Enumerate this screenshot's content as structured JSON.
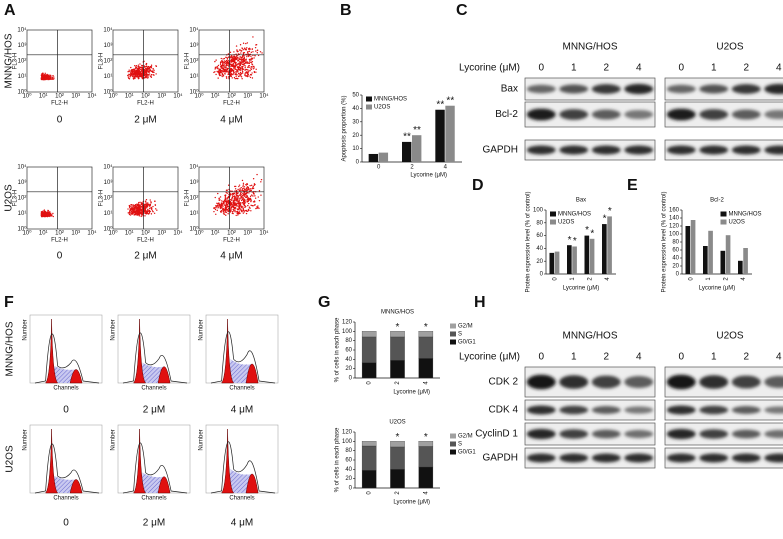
{
  "A": {
    "label": "A",
    "rows": [
      "MNNG/HOS",
      "U2OS"
    ],
    "columns": [
      "0",
      "2 μM",
      "4 μM"
    ],
    "x_axis": "FL2-H",
    "y_axis": "FL3-H",
    "ticks": [
      "10⁰",
      "10¹",
      "10²",
      "10³",
      "10⁴"
    ]
  },
  "B": {
    "label": "B",
    "chart": {
      "type": "bar",
      "ylabel": "Apoptosis proportion (%)",
      "xlabel": "Lycorine (μM)",
      "categories": [
        "0",
        "2",
        "4"
      ],
      "series": [
        {
          "name": "MNNG/HOS",
          "color": "#111111",
          "values": [
            6,
            15,
            39
          ],
          "significance": [
            null,
            "**",
            "**"
          ]
        },
        {
          "name": "U2OS",
          "color": "#8a8a8a",
          "values": [
            7,
            20,
            42
          ],
          "significance": [
            null,
            "**",
            "**"
          ]
        }
      ],
      "ylim": [
        0,
        50
      ],
      "yticks": [
        0,
        10,
        20,
        30,
        40,
        50
      ],
      "legend": "upper left"
    }
  },
  "C": {
    "label": "C",
    "groups": [
      "MNNG/HOS",
      "U2OS"
    ],
    "treatment": "Lycorine (μM)",
    "lanes": [
      "0",
      "1",
      "2",
      "4"
    ],
    "proteins": [
      "Bax",
      "Bcl-2",
      "GAPDH"
    ]
  },
  "D": {
    "label": "D",
    "chart": {
      "type": "bar",
      "title": "Bax",
      "ylabel": "Protein expression level (% of control)",
      "xlabel": "Lycorine (μM)",
      "categories": [
        "0",
        "1",
        "2",
        "4"
      ],
      "series": [
        {
          "name": "MNNG/HOS",
          "color": "#111111",
          "values": [
            33,
            45,
            60,
            78
          ],
          "significance": [
            null,
            "*",
            "*",
            "*"
          ]
        },
        {
          "name": "U2OS",
          "color": "#8a8a8a",
          "values": [
            35,
            43,
            55,
            90
          ],
          "significance": [
            null,
            "*",
            "*",
            "*"
          ]
        }
      ],
      "ylim": [
        0,
        100
      ],
      "yticks": [
        0,
        20,
        40,
        60,
        80,
        100
      ],
      "legend": "upper left"
    }
  },
  "E": {
    "label": "E",
    "chart": {
      "type": "bar",
      "title": "Bcl-2",
      "ylabel": "Protein expression level (% of control)",
      "xlabel": "Lycorine (μM)",
      "categories": [
        "0",
        "1",
        "2",
        "4"
      ],
      "series": [
        {
          "name": "MNNG/HOS",
          "color": "#111111",
          "values": [
            120,
            70,
            58,
            33
          ]
        },
        {
          "name": "U2OS",
          "color": "#8a8a8a",
          "values": [
            135,
            108,
            97,
            65
          ]
        }
      ],
      "ylim": [
        0,
        160
      ],
      "yticks": [
        0,
        20,
        40,
        60,
        80,
        100,
        120,
        140,
        160
      ],
      "legend": "upper right"
    }
  },
  "F": {
    "label": "F",
    "rows": [
      "MNNG/HOS",
      "U2OS"
    ],
    "columns": [
      "0",
      "2 μM",
      "4 μM"
    ],
    "x_axis": "Channels",
    "y_axis": "Number"
  },
  "G": {
    "label": "G",
    "charts": [
      {
        "type": "stacked_bar",
        "title": "MNNG/HOS",
        "ylabel": "% of cells in each phase",
        "xlabel": "Lycorine (μM)",
        "categories": [
          "0",
          "2",
          "4"
        ],
        "series": [
          {
            "name": "G0/G1",
            "color": "#111111",
            "values": [
              33,
              38,
              42
            ]
          },
          {
            "name": "S",
            "color": "#555555",
            "values": [
              55,
              50,
              46
            ]
          },
          {
            "name": "G2/M",
            "color": "#a0a0a0",
            "values": [
              12,
              12,
              12
            ]
          }
        ],
        "significance": [
          null,
          "*",
          "*"
        ],
        "ylim": [
          0,
          120
        ],
        "yticks": [
          0,
          20,
          40,
          60,
          80,
          100,
          120
        ],
        "legend": "right"
      },
      {
        "type": "stacked_bar",
        "title": "U2OS",
        "ylabel": "% of cells in each phase",
        "xlabel": "Lycorine (μM)",
        "categories": [
          "0",
          "2",
          "4"
        ],
        "series": [
          {
            "name": "G0/G1",
            "color": "#111111",
            "values": [
              38,
              40,
              45
            ]
          },
          {
            "name": "S",
            "color": "#555555",
            "values": [
              52,
              48,
              44
            ]
          },
          {
            "name": "G2/M",
            "color": "#a0a0a0",
            "values": [
              10,
              12,
              11
            ]
          }
        ],
        "significance": [
          null,
          "*",
          "*"
        ],
        "ylim": [
          0,
          120
        ],
        "yticks": [
          0,
          20,
          40,
          60,
          80,
          100,
          120
        ],
        "legend": "right"
      }
    ]
  },
  "H": {
    "label": "H",
    "groups": [
      "MNNG/HOS",
      "U2OS"
    ],
    "treatment": "Lycorine (μM)",
    "lanes": [
      "0",
      "1",
      "2",
      "4"
    ],
    "proteins": [
      "CDK 2",
      "CDK 4",
      "CyclinD 1",
      "GAPDH"
    ]
  }
}
